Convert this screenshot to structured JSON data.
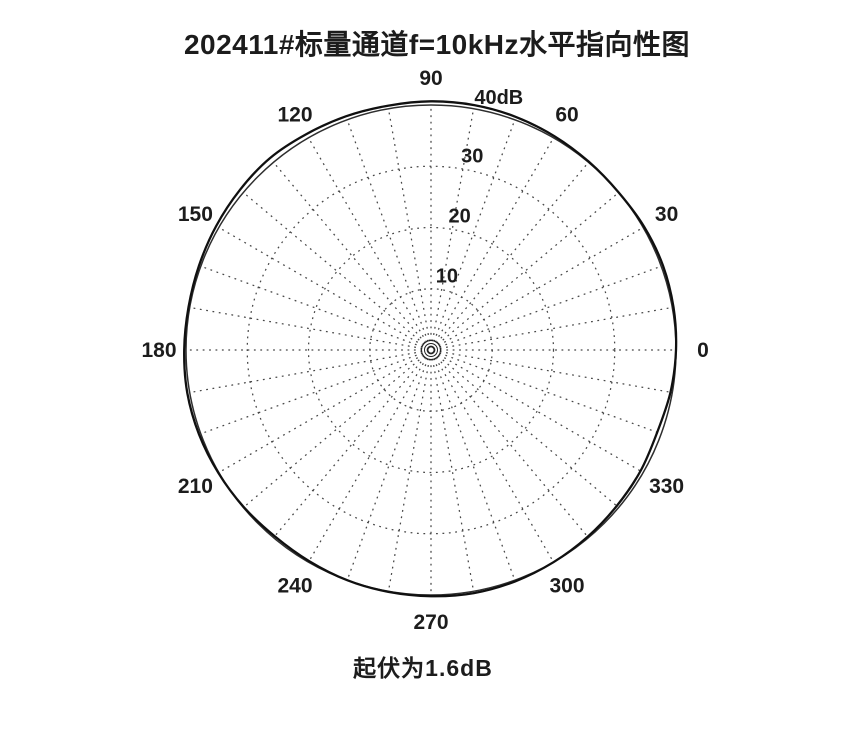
{
  "title": "202411#标量通道f=10kHz水平指向性图",
  "caption": "起伏为1.6dB",
  "colors": {
    "background": "#ffffff",
    "ink": "#1c1c1c",
    "grid": "#474747",
    "boundary": "#2e2e2e",
    "trace": "#101010"
  },
  "chart_data": {
    "type": "line",
    "subtype": "polar-directivity",
    "title": "202411#标量通道f=10kHz水平指向性图",
    "caption": "起伏为1.6dB",
    "fluctuation_db": 1.6,
    "angle_unit": "deg",
    "angle_labels": [
      "0",
      "30",
      "60",
      "90",
      "120",
      "150",
      "180",
      "210",
      "240",
      "270",
      "300",
      "330"
    ],
    "angle_label_step_deg": 30,
    "grid_angle_step_deg": 10,
    "grid_style": "dotted",
    "radial_axis_max_db": 40,
    "radial_ticks": [
      {
        "value": 10,
        "label": "10"
      },
      {
        "value": 20,
        "label": "20"
      },
      {
        "value": 30,
        "label": "30"
      },
      {
        "value": 40,
        "label": "40dB"
      }
    ],
    "radial_label_angle_deg": 78,
    "series": [
      {
        "name": "horizontal-directivity-trace",
        "points_deg_db": [
          [
            0,
            40.0
          ],
          [
            10,
            40.2
          ],
          [
            20,
            40.3
          ],
          [
            30,
            40.2
          ],
          [
            40,
            40.0
          ],
          [
            50,
            40.1
          ],
          [
            60,
            40.3
          ],
          [
            70,
            40.5
          ],
          [
            80,
            40.6
          ],
          [
            90,
            40.6
          ],
          [
            100,
            40.5
          ],
          [
            110,
            40.6
          ],
          [
            120,
            40.7
          ],
          [
            130,
            40.9
          ],
          [
            140,
            40.7
          ],
          [
            150,
            40.5
          ],
          [
            160,
            40.3
          ],
          [
            170,
            40.2
          ],
          [
            180,
            40.3
          ],
          [
            190,
            40.4
          ],
          [
            200,
            40.3
          ],
          [
            210,
            40.1
          ],
          [
            220,
            39.9
          ],
          [
            230,
            39.7
          ],
          [
            240,
            39.8
          ],
          [
            250,
            40.0
          ],
          [
            260,
            40.1
          ],
          [
            270,
            40.2
          ],
          [
            280,
            40.3
          ],
          [
            290,
            40.2
          ],
          [
            300,
            40.0
          ],
          [
            310,
            39.8
          ],
          [
            320,
            39.6
          ],
          [
            330,
            39.5
          ],
          [
            340,
            39.3
          ],
          [
            350,
            39.7
          ]
        ]
      }
    ]
  }
}
